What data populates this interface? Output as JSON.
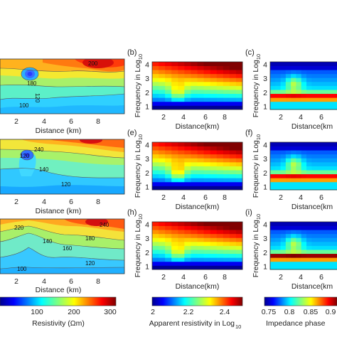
{
  "panels": {
    "b": "(b)",
    "c": "(c)",
    "e": "(e)",
    "f": "(f)",
    "h": "(h)",
    "i": "(i)"
  },
  "axes": {
    "distance": "Distance (km)",
    "distance_nospace": "Distance(km)",
    "distance_trunc": "Distance(km",
    "frequency": "Frequency in Log",
    "frequency_sub": "10",
    "x_ticks_left": [
      "2",
      "4",
      "6",
      "8"
    ],
    "x_ticks_mid": [
      "2",
      "4",
      "6",
      "8"
    ],
    "x_ticks_right": [
      "2",
      "4",
      "6"
    ],
    "y_ticks": [
      "1",
      "2",
      "3",
      "4"
    ]
  },
  "contour_labels": {
    "a": [
      "180",
      "140",
      "120",
      "100",
      "200"
    ],
    "d": [
      "120",
      "240",
      "140",
      "120"
    ],
    "g": [
      "220",
      "140",
      "160",
      "180",
      "240",
      "120",
      "100"
    ]
  },
  "colorbars": [
    {
      "label": "Resistivity (Ωm)",
      "ticks": [
        "100",
        "200",
        "300"
      ]
    },
    {
      "label": "Apparent resistivity in Log",
      "label_sub": "10",
      "ticks": [
        "2",
        "2.2",
        "2.4"
      ]
    },
    {
      "label": "Impedance phase",
      "ticks": [
        "0.75",
        "0.8",
        "0.85",
        "0.9"
      ]
    }
  ]
}
